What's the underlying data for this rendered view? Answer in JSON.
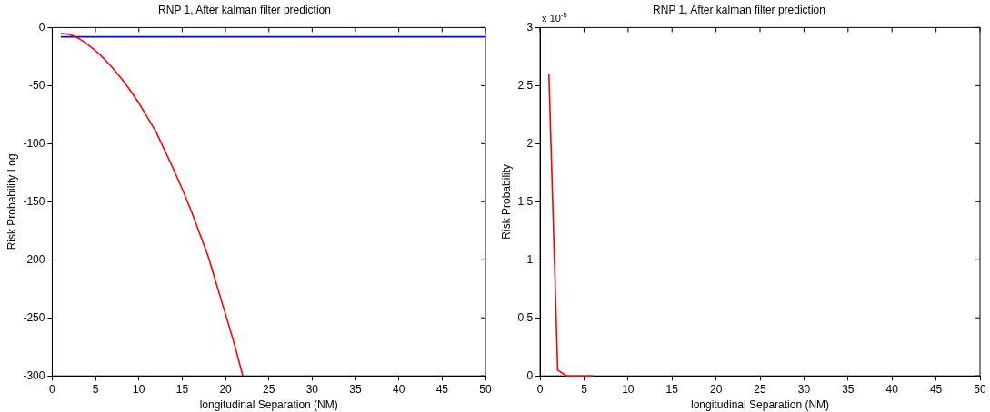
{
  "chart_data": [
    {
      "type": "line",
      "title": "RNP 1, After kalman filter prediction",
      "xlabel": "longitudinal Separation (NM)",
      "ylabel": "Risk Probability Log",
      "xlim": [
        0,
        50
      ],
      "xticks": [
        0,
        5,
        10,
        15,
        20,
        25,
        30,
        35,
        40,
        45,
        50
      ],
      "ylim": [
        -300,
        0
      ],
      "yticks": [
        -300,
        -250,
        -200,
        -150,
        -100,
        -50,
        0
      ],
      "grid": false,
      "legend": false,
      "marker": "none",
      "line_style": "solid",
      "series": [
        {
          "color": "#ff0000",
          "x": [
            1,
            2,
            3,
            4,
            5,
            6,
            7,
            8,
            9,
            10,
            12,
            14,
            15,
            16,
            18,
            20,
            21,
            22
          ],
          "values": [
            -5,
            -6,
            -9,
            -14,
            -20,
            -27,
            -35,
            -44,
            -54,
            -65,
            -90,
            -122,
            -139,
            -157,
            -197,
            -247,
            -272,
            -300
          ]
        },
        {
          "color": "#0000ff",
          "x": [
            1,
            50
          ],
          "values": [
            -8,
            -8
          ]
        }
      ]
    },
    {
      "type": "line",
      "title": "RNP 1, After kalman filter prediction",
      "xlabel": "longitudinal Separation (NM)",
      "ylabel": "Risk Probability",
      "annotations": [
        "x 10$^{-5}$"
      ],
      "xlim": [
        0,
        50
      ],
      "xticks": [
        0,
        5,
        10,
        15,
        20,
        25,
        30,
        35,
        40,
        45,
        50
      ],
      "ylim": [
        0,
        3
      ],
      "yticks": [
        0,
        0.5,
        1,
        1.5,
        2,
        2.5,
        3
      ],
      "grid": false,
      "legend": false,
      "marker": "none",
      "line_style": "solid",
      "series": [
        {
          "color": "#ff0000",
          "x": [
            1,
            2,
            3,
            4,
            5,
            6
          ],
          "values": [
            2.6,
            0.05,
            0,
            0,
            0,
            0
          ]
        }
      ]
    }
  ]
}
